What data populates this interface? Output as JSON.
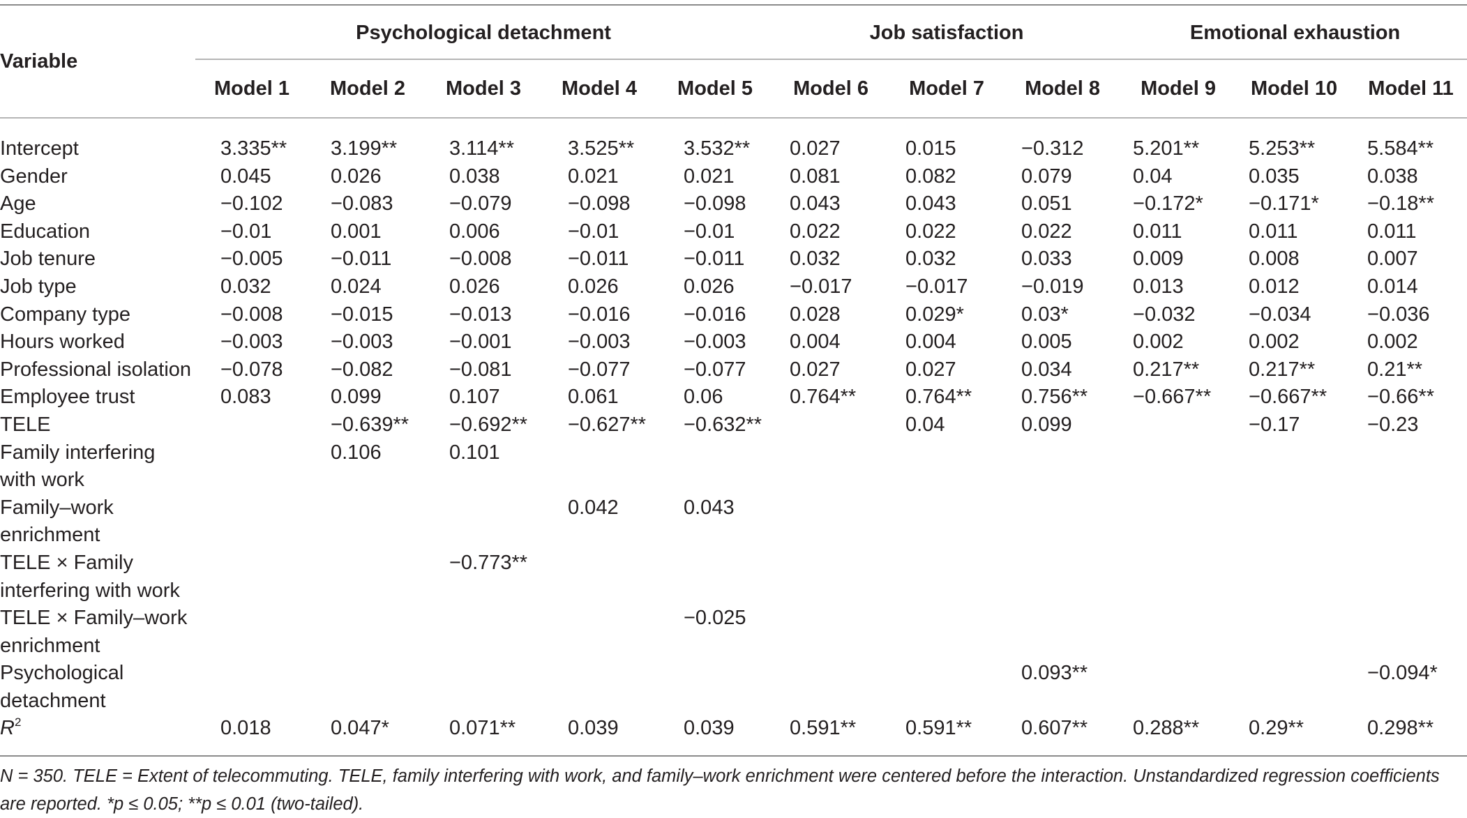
{
  "header": {
    "variable_label": "Variable",
    "groups": [
      {
        "label": "Psychological detachment",
        "span": 5
      },
      {
        "label": "Job satisfaction",
        "span": 3
      },
      {
        "label": "Emotional exhaustion",
        "span": 3
      }
    ],
    "models": [
      "Model 1",
      "Model 2",
      "Model 3",
      "Model 4",
      "Model 5",
      "Model 6",
      "Model 7",
      "Model 8",
      "Model 9",
      "Model 10",
      "Model 11"
    ]
  },
  "rows": [
    {
      "variable": "Intercept",
      "values": [
        "3.335**",
        "3.199**",
        "3.114**",
        "3.525**",
        "3.532**",
        "0.027",
        "0.015",
        "−0.312",
        "5.201**",
        "5.253**",
        "5.584**"
      ]
    },
    {
      "variable": "Gender",
      "values": [
        "0.045",
        "0.026",
        "0.038",
        "0.021",
        "0.021",
        "0.081",
        "0.082",
        "0.079",
        "0.04",
        "0.035",
        "0.038"
      ]
    },
    {
      "variable": "Age",
      "values": [
        "−0.102",
        "−0.083",
        "−0.079",
        "−0.098",
        "−0.098",
        "0.043",
        "0.043",
        "0.051",
        "−0.172*",
        "−0.171*",
        "−0.18**"
      ]
    },
    {
      "variable": "Education",
      "values": [
        "−0.01",
        "0.001",
        "0.006",
        "−0.01",
        "−0.01",
        "0.022",
        "0.022",
        "0.022",
        "0.011",
        "0.011",
        "0.011"
      ]
    },
    {
      "variable": "Job tenure",
      "values": [
        "−0.005",
        "−0.011",
        "−0.008",
        "−0.011",
        "−0.011",
        "0.032",
        "0.032",
        "0.033",
        "0.009",
        "0.008",
        "0.007"
      ]
    },
    {
      "variable": "Job type",
      "values": [
        "0.032",
        "0.024",
        "0.026",
        "0.026",
        "0.026",
        "−0.017",
        "−0.017",
        "−0.019",
        "0.013",
        "0.012",
        "0.014"
      ]
    },
    {
      "variable": "Company type",
      "values": [
        "−0.008",
        "−0.015",
        "−0.013",
        "−0.016",
        "−0.016",
        "0.028",
        "0.029*",
        "0.03*",
        "−0.032",
        "−0.034",
        "−0.036"
      ]
    },
    {
      "variable": "Hours worked",
      "values": [
        "−0.003",
        "−0.003",
        "−0.001",
        "−0.003",
        "−0.003",
        "0.004",
        "0.004",
        "0.005",
        "0.002",
        "0.002",
        "0.002"
      ]
    },
    {
      "variable": "Professional isolation",
      "values": [
        "−0.078",
        "−0.082",
        "−0.081",
        "−0.077",
        "−0.077",
        "0.027",
        "0.027",
        "0.034",
        "0.217**",
        "0.217**",
        "0.21**"
      ]
    },
    {
      "variable": "Employee trust",
      "values": [
        "0.083",
        "0.099",
        "0.107",
        "0.061",
        "0.06",
        "0.764**",
        "0.764**",
        "0.756**",
        "−0.667**",
        "−0.667**",
        "−0.66**"
      ]
    },
    {
      "variable": "TELE",
      "values": [
        "",
        "−0.639**",
        "−0.692**",
        "−0.627**",
        "−0.632**",
        "",
        "0.04",
        "0.099",
        "",
        "−0.17",
        "−0.23"
      ]
    },
    {
      "variable": "Family interfering with work",
      "values": [
        "",
        "0.106",
        "0.101",
        "",
        "",
        "",
        "",
        "",
        "",
        "",
        ""
      ]
    },
    {
      "variable": "Family–work enrichment",
      "values": [
        "",
        "",
        "",
        "0.042",
        "0.043",
        "",
        "",
        "",
        "",
        "",
        ""
      ]
    },
    {
      "variable": "TELE × Family interfering with work",
      "values": [
        "",
        "",
        "−0.773**",
        "",
        "",
        "",
        "",
        "",
        "",
        "",
        ""
      ]
    },
    {
      "variable": "TELE × Family–work enrichment",
      "values": [
        "",
        "",
        "",
        "",
        "−0.025",
        "",
        "",
        "",
        "",
        "",
        ""
      ]
    },
    {
      "variable": "Psychological detachment",
      "values": [
        "",
        "",
        "",
        "",
        "",
        "",
        "",
        "0.093**",
        "",
        "",
        "−0.094*"
      ]
    },
    {
      "variable_main": "R",
      "variable_sup": "2",
      "values": [
        "0.018",
        "0.047*",
        "0.071**",
        "0.039",
        "0.039",
        "0.591**",
        "0.591**",
        "0.607**",
        "0.288**",
        "0.29**",
        "0.298**"
      ]
    }
  ],
  "note": "N = 350. TELE = Extent of telecommuting. TELE, family interfering with work, and family–work enrichment were centered before the interaction. Unstandardized regression coefficients are reported. *p ≤ 0.05; **p ≤ 0.01 (two-tailed)."
}
